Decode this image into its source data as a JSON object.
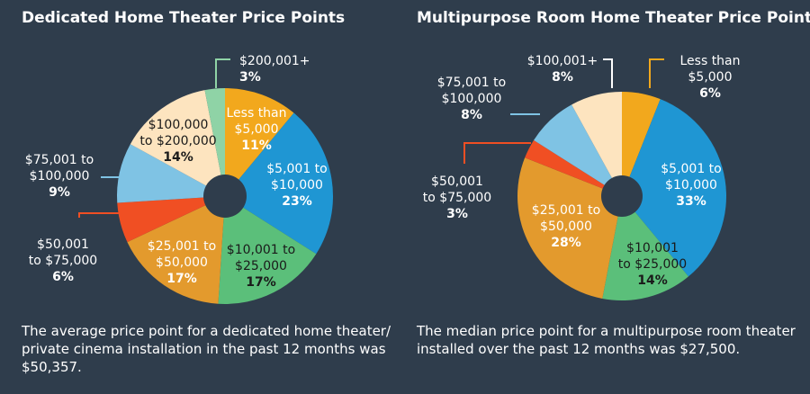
{
  "chart_data": [
    {
      "type": "pie",
      "title": "Dedicated Home Theater Price Points",
      "slices": [
        {
          "label": "Less than $5,000",
          "value": 11,
          "display": "11%",
          "color": "#f2a81d"
        },
        {
          "label": "$5,001 to $10,000",
          "value": 23,
          "display": "23%",
          "color": "#1f96d3"
        },
        {
          "label": "$10,001 to $25,000",
          "value": 17,
          "display": "17%",
          "color": "#5bbf7a"
        },
        {
          "label": "$25,001 to $50,000",
          "value": 17,
          "display": "17%",
          "color": "#e39a2d"
        },
        {
          "label": "$50,001 to $75,000",
          "value": 6,
          "display": "6%",
          "color": "#f04f23"
        },
        {
          "label": "$75,001 to $100,000",
          "value": 9,
          "display": "9%",
          "color": "#7fc3e4"
        },
        {
          "label": "$100,000 to $200,000",
          "value": 14,
          "display": "14%",
          "color": "#fde4bf"
        },
        {
          "label": "$200,001+",
          "value": 3,
          "display": "3%",
          "color": "#8fd3a6"
        }
      ],
      "caption": "The average price point for a dedicated home theater/ private cinema installation in the past 12 months was $50,357."
    },
    {
      "type": "pie",
      "title": "Multipurpose Room Home Theater Price Points",
      "slices": [
        {
          "label": "Less than $5,000",
          "value": 6,
          "display": "6%",
          "color": "#f2a81d"
        },
        {
          "label": "$5,001 to $10,000",
          "value": 33,
          "display": "33%",
          "color": "#1f96d3"
        },
        {
          "label": "$10,001 to $25,000",
          "value": 14,
          "display": "14%",
          "color": "#5bbf7a"
        },
        {
          "label": "$25,001 to $50,000",
          "value": 28,
          "display": "28%",
          "color": "#e39a2d"
        },
        {
          "label": "$50,001 to $75,000",
          "value": 3,
          "display": "3%",
          "color": "#f04f23"
        },
        {
          "label": "$75,001 to $100,000",
          "value": 8,
          "display": "8%",
          "color": "#7fc3e4"
        },
        {
          "label": "$100,001+",
          "value": 8,
          "display": "8%",
          "color": "#fde4bf"
        }
      ],
      "caption": "The median price point for a multipurpose room theater installed over the past 12 months was $27,500."
    }
  ],
  "colors": {
    "background": "#2f3d4c",
    "center_hole": "#2f3d4c",
    "text": "#ffffff"
  }
}
